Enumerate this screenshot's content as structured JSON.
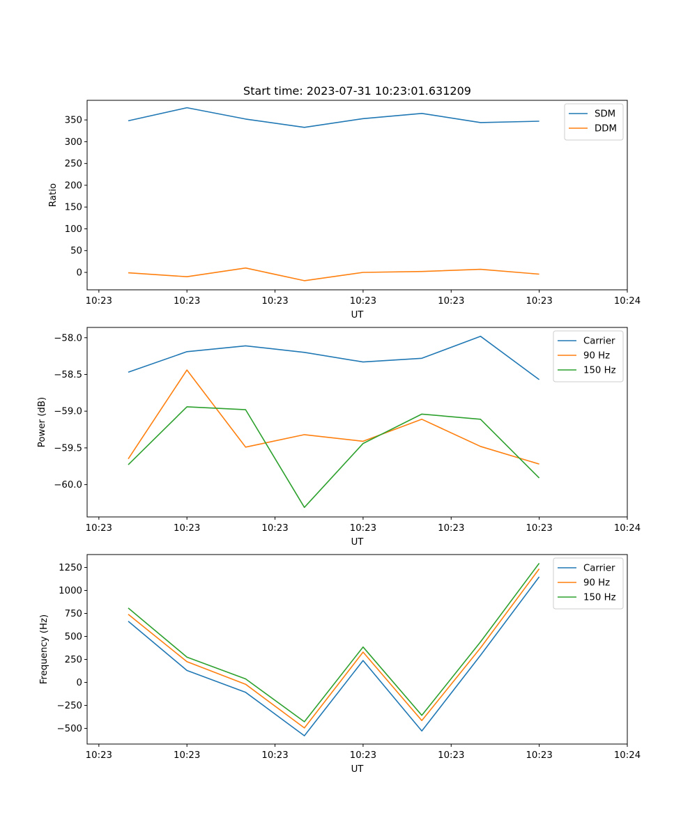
{
  "chart_data": [
    {
      "type": "line",
      "title": "Start time: 2023-07-31 10:23:01.631209",
      "xlabel": "UT",
      "ylabel": "Ratio",
      "ylim": [
        -40,
        395
      ],
      "yticks": [
        0,
        50,
        100,
        150,
        200,
        250,
        300,
        350
      ],
      "ytick_labels": [
        "0",
        "50",
        "100",
        "150",
        "200",
        "250",
        "300",
        "350"
      ],
      "xlim": [
        -0.7,
        8.5
      ],
      "xticks": [
        -0.5,
        1.0,
        2.5,
        4.0,
        5.5,
        7.0,
        8.5
      ],
      "xtick_labels": [
        "10:23",
        "10:23",
        "10:23",
        "10:23",
        "10:23",
        "10:23",
        "10:24"
      ],
      "x": [
        0,
        1,
        2,
        3,
        4,
        5,
        6,
        7
      ],
      "legend_position": "top-right",
      "series": [
        {
          "name": "SDM",
          "color": "#1f77b4",
          "values": [
            348,
            378,
            352,
            333,
            353,
            365,
            344,
            347
          ]
        },
        {
          "name": "DDM",
          "color": "#ff7f0e",
          "values": [
            -1,
            -10,
            10,
            -19,
            0,
            2,
            7,
            -4
          ]
        }
      ]
    },
    {
      "type": "line",
      "title": "",
      "xlabel": "UT",
      "ylabel": "Power (dB)",
      "ylim": [
        -60.44,
        -57.86
      ],
      "yticks": [
        -60.0,
        -59.5,
        -59.0,
        -58.5,
        -58.0
      ],
      "ytick_labels": [
        "−60.0",
        "−59.5",
        "−59.0",
        "−58.5",
        "−58.0"
      ],
      "xlim": [
        -0.7,
        8.5
      ],
      "xticks": [
        -0.5,
        1.0,
        2.5,
        4.0,
        5.5,
        7.0,
        8.5
      ],
      "xtick_labels": [
        "10:23",
        "10:23",
        "10:23",
        "10:23",
        "10:23",
        "10:23",
        "10:24"
      ],
      "x": [
        0,
        1,
        2,
        3,
        4,
        5,
        6,
        7
      ],
      "legend_position": "top-right",
      "series": [
        {
          "name": "Carrier",
          "color": "#1f77b4",
          "values": [
            -58.47,
            -58.19,
            -58.11,
            -58.2,
            -58.33,
            -58.28,
            -57.98,
            -58.57
          ]
        },
        {
          "name": "90 Hz",
          "color": "#ff7f0e",
          "values": [
            -59.65,
            -58.44,
            -59.49,
            -59.32,
            -59.41,
            -59.11,
            -59.48,
            -59.72
          ]
        },
        {
          "name": "150 Hz",
          "color": "#2ca02c",
          "values": [
            -59.73,
            -58.94,
            -58.98,
            -60.31,
            -59.44,
            -59.04,
            -59.11,
            -59.91
          ]
        }
      ]
    },
    {
      "type": "line",
      "title": "",
      "xlabel": "UT",
      "ylabel": "Frequency (Hz)",
      "ylim": [
        -670,
        1390
      ],
      "yticks": [
        -500,
        -250,
        0,
        250,
        500,
        750,
        1000,
        1250
      ],
      "ytick_labels": [
        "−500",
        "−250",
        "0",
        "250",
        "500",
        "750",
        "1000",
        "1250"
      ],
      "xlim": [
        -0.7,
        8.5
      ],
      "xticks": [
        -0.5,
        1.0,
        2.5,
        4.0,
        5.5,
        7.0,
        8.5
      ],
      "xtick_labels": [
        "10:23",
        "10:23",
        "10:23",
        "10:23",
        "10:23",
        "10:23",
        "10:24"
      ],
      "x": [
        0,
        1,
        2,
        3,
        4,
        5,
        6,
        7
      ],
      "legend_position": "top-right",
      "series": [
        {
          "name": "Carrier",
          "color": "#1f77b4",
          "values": [
            665,
            130,
            -108,
            -580,
            238,
            -528,
            295,
            1148
          ]
        },
        {
          "name": "90 Hz",
          "color": "#ff7f0e",
          "values": [
            740,
            225,
            -20,
            -495,
            330,
            -415,
            375,
            1235
          ]
        },
        {
          "name": "150 Hz",
          "color": "#2ca02c",
          "values": [
            808,
            275,
            38,
            -428,
            385,
            -358,
            440,
            1295
          ]
        }
      ]
    }
  ]
}
